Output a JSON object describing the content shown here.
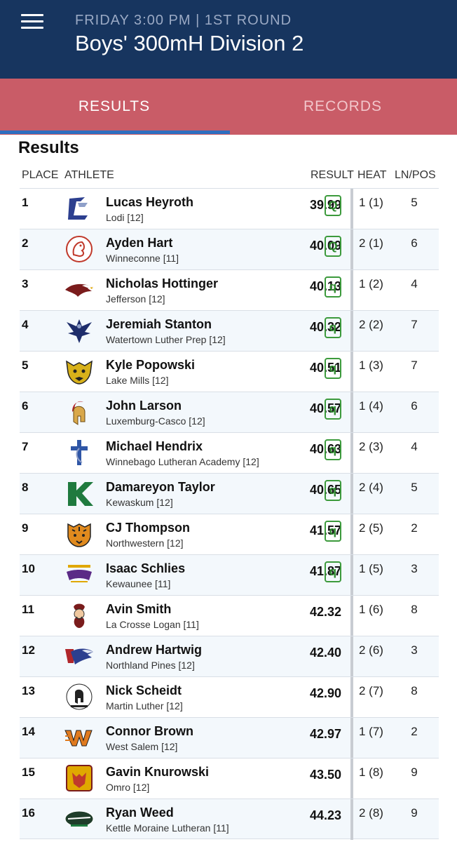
{
  "header": {
    "subtitle": "FRIDAY 3:00 PM | 1ST ROUND",
    "title": "Boys' 300mH Division 2"
  },
  "tabs": [
    {
      "label": "RESULTS",
      "active": true
    },
    {
      "label": "RECORDS",
      "active": false
    }
  ],
  "section_title": "Results",
  "columns": {
    "place": "PLACE",
    "athlete": "ATHLETE",
    "result": "RESULT",
    "heat": "HEAT",
    "lnpos": "LN/POS"
  },
  "colors": {
    "header_bg": "#17355f",
    "tab_bg": "#c95c67",
    "tab_indicator": "#2e6fc0",
    "qualifier_green": "#3c9a3c"
  },
  "results": [
    {
      "place": "1",
      "name": "Lucas Heyroth",
      "school": "Lodi [12]",
      "result": "39.99",
      "q": "Q",
      "heat": "1 (1)",
      "lnpos": "5",
      "logo": "lodi-logo"
    },
    {
      "place": "2",
      "name": "Ayden Hart",
      "school": "Winneconne [11]",
      "result": "40.09",
      "q": "Q",
      "heat": "2 (1)",
      "lnpos": "6",
      "logo": "winneconne-logo"
    },
    {
      "place": "3",
      "name": "Nicholas Hottinger",
      "school": "Jefferson [12]",
      "result": "40.13",
      "q": "q",
      "heat": "1 (2)",
      "lnpos": "4",
      "logo": "jefferson-eagle-logo"
    },
    {
      "place": "4",
      "name": "Jeremiah Stanton",
      "school": "Watertown Luther Prep [12]",
      "result": "40.32",
      "q": "q",
      "heat": "2 (2)",
      "lnpos": "7",
      "logo": "luther-prep-phoenix-logo"
    },
    {
      "place": "5",
      "name": "Kyle Popowski",
      "school": "Lake Mills [12]",
      "result": "40.51",
      "q": "q",
      "heat": "1 (3)",
      "lnpos": "7",
      "logo": "lake-mills-wildcat-logo"
    },
    {
      "place": "6",
      "name": "John Larson",
      "school": "Luxemburg-Casco [12]",
      "result": "40.57",
      "q": "q",
      "heat": "1 (4)",
      "lnpos": "6",
      "logo": "spartan-helmet-logo"
    },
    {
      "place": "7",
      "name": "Michael Hendrix",
      "school": "Winnebago Lutheran Academy [12]",
      "result": "40.63",
      "q": "q",
      "heat": "2 (3)",
      "lnpos": "4",
      "logo": "cross-logo"
    },
    {
      "place": "8",
      "name": "Damareyon Taylor",
      "school": "Kewaskum [12]",
      "result": "40.65",
      "q": "q",
      "heat": "2 (4)",
      "lnpos": "5",
      "logo": "kewaskum-k-logo"
    },
    {
      "place": "9",
      "name": "CJ Thompson",
      "school": "Northwestern [12]",
      "result": "41.57",
      "q": "q",
      "heat": "2 (5)",
      "lnpos": "2",
      "logo": "tiger-logo"
    },
    {
      "place": "10",
      "name": "Isaac Schlies",
      "school": "Kewaunee [11]",
      "result": "41.87",
      "q": "q",
      "heat": "1 (5)",
      "lnpos": "3",
      "logo": "storm-logo"
    },
    {
      "place": "11",
      "name": "Avin Smith",
      "school": "La Crosse Logan [11]",
      "result": "42.32",
      "q": "",
      "heat": "1 (6)",
      "lnpos": "8",
      "logo": "ranger-logo"
    },
    {
      "place": "12",
      "name": "Andrew Hartwig",
      "school": "Northland Pines [12]",
      "result": "42.40",
      "q": "",
      "heat": "2 (6)",
      "lnpos": "3",
      "logo": "eagle-np-logo"
    },
    {
      "place": "13",
      "name": "Nick Scheidt",
      "school": "Martin Luther [12]",
      "result": "42.90",
      "q": "",
      "heat": "2 (7)",
      "lnpos": "8",
      "logo": "martin-luther-spartans-logo"
    },
    {
      "place": "14",
      "name": "Connor Brown",
      "school": "West Salem [12]",
      "result": "42.97",
      "q": "",
      "heat": "1 (7)",
      "lnpos": "2",
      "logo": "ws-logo"
    },
    {
      "place": "15",
      "name": "Gavin Knurowski",
      "school": "Omro [12]",
      "result": "43.50",
      "q": "",
      "heat": "1 (8)",
      "lnpos": "9",
      "logo": "omro-foxes-logo"
    },
    {
      "place": "16",
      "name": "Ryan Weed",
      "school": "Kettle Moraine Lutheran [11]",
      "result": "44.23",
      "q": "",
      "heat": "2 (8)",
      "lnpos": "9",
      "logo": "chargers-logo"
    }
  ]
}
